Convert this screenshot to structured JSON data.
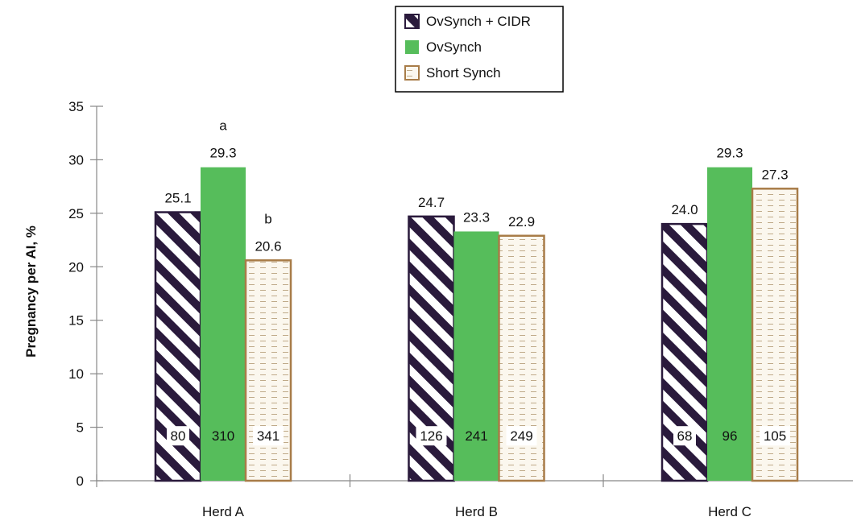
{
  "chart_data": {
    "type": "bar",
    "categories": [
      "Herd A",
      "Herd B",
      "Herd C"
    ],
    "series": [
      {
        "name": "OvSynch + CIDR",
        "values": [
          25.1,
          24.7,
          24.0
        ],
        "n": [
          "80",
          "126",
          "68"
        ],
        "color": "#2a1a3c",
        "pattern": "diagonal-stripes"
      },
      {
        "name": "OvSynch",
        "values": [
          29.3,
          23.3,
          29.3
        ],
        "n": [
          "310",
          "241",
          "96"
        ],
        "color": "#56bd5b",
        "pattern": "solid"
      },
      {
        "name": "Short Synch",
        "values": [
          20.6,
          22.9,
          27.3
        ],
        "n": [
          "341",
          "249",
          "105"
        ],
        "color": "#a87c48",
        "pattern": "dashed-fill"
      }
    ],
    "value_labels": [
      [
        "25.1",
        "24.7",
        "24.0"
      ],
      [
        "29.3",
        "23.3",
        "29.3"
      ],
      [
        "20.6",
        "22.9",
        "27.3"
      ]
    ],
    "annotations": [
      {
        "series": 1,
        "category": 0,
        "text": "a"
      },
      {
        "series": 2,
        "category": 0,
        "text": "b"
      }
    ],
    "ylabel": "Pregnancy per AI, %",
    "xlabel": "",
    "ylim": [
      0,
      35
    ],
    "yticks": [
      0,
      5,
      10,
      15,
      20,
      25,
      30,
      35
    ],
    "grid": false,
    "legend_position": "top-center"
  }
}
